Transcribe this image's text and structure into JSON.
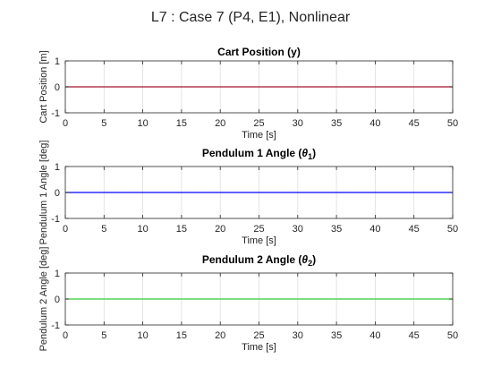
{
  "figure": {
    "suptitle": "L7 : Case 7 (P4, E1), Nonlinear"
  },
  "chart_data": [
    {
      "type": "line",
      "title": "Cart Position (y)",
      "xlabel": "Time [s]",
      "ylabel": "Cart Position [m]",
      "xlim": [
        0,
        50
      ],
      "ylim": [
        -1,
        1
      ],
      "xticks": [
        "0",
        "5",
        "10",
        "15",
        "20",
        "25",
        "30",
        "35",
        "40",
        "45",
        "50"
      ],
      "yticks": [
        "-1",
        "0",
        "1"
      ],
      "grid": true,
      "series": [
        {
          "x": [
            0,
            50
          ],
          "values": [
            0,
            0
          ],
          "color": "#a2142f"
        }
      ]
    },
    {
      "type": "line",
      "title_main": "Pendulum 1 Angle (",
      "title_sym": "θ",
      "title_sub": "1",
      "title_end": ")",
      "xlabel": "Time [s]",
      "ylabel": "Pendulum 1 Angle [deg]",
      "xlim": [
        0,
        50
      ],
      "ylim": [
        -1,
        1
      ],
      "xticks": [
        "0",
        "5",
        "10",
        "15",
        "20",
        "25",
        "30",
        "35",
        "40",
        "45",
        "50"
      ],
      "yticks": [
        "-1",
        "0",
        "1"
      ],
      "grid": true,
      "series": [
        {
          "x": [
            0,
            50
          ],
          "values": [
            0,
            0
          ],
          "color": "#0000ff"
        }
      ]
    },
    {
      "type": "line",
      "title_main": "Pendulum 2 Angle (",
      "title_sym": "θ",
      "title_sub": "2",
      "title_end": ")",
      "xlabel": "Time [s]",
      "ylabel": "Pendulum 2 Angle [deg]",
      "xlim": [
        0,
        50
      ],
      "ylim": [
        -1,
        1
      ],
      "xticks": [
        "0",
        "5",
        "10",
        "15",
        "20",
        "25",
        "30",
        "35",
        "40",
        "45",
        "50"
      ],
      "yticks": [
        "-1",
        "0",
        "1"
      ],
      "grid": true,
      "series": [
        {
          "x": [
            0,
            50
          ],
          "values": [
            0,
            0
          ],
          "color": "#33cc33"
        }
      ]
    }
  ]
}
